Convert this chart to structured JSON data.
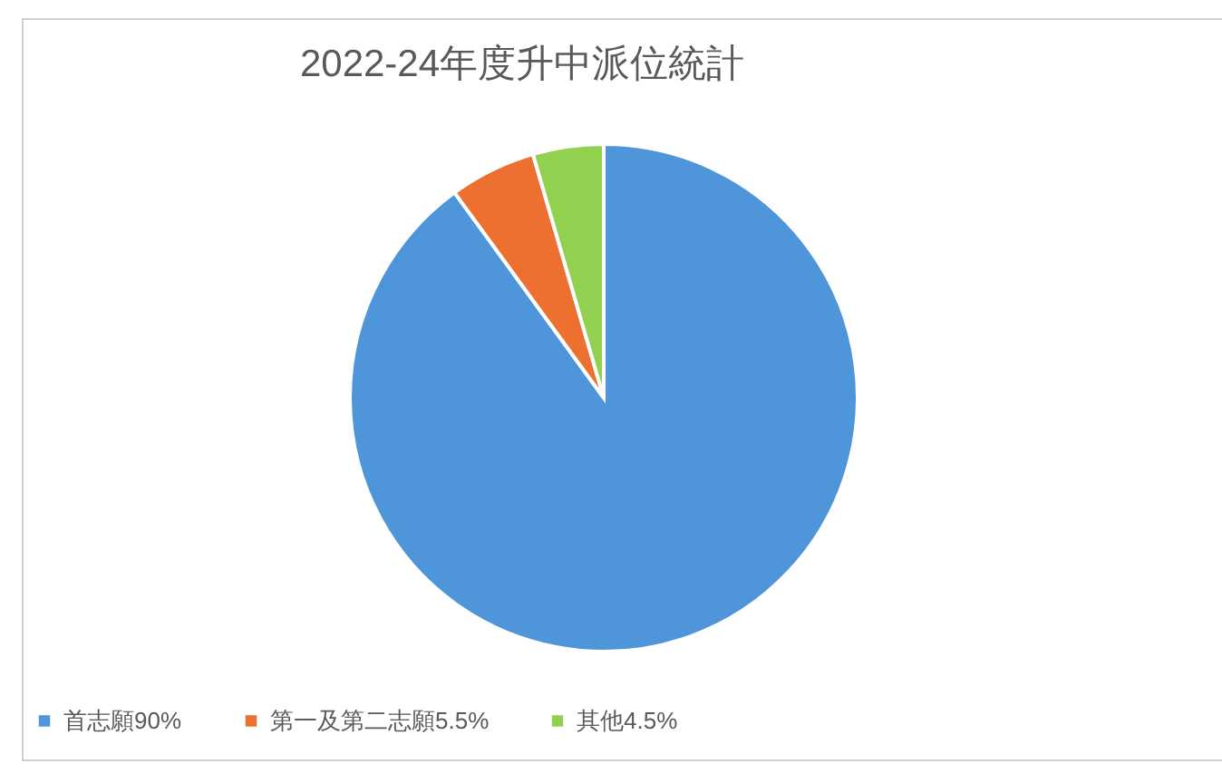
{
  "chart_data": {
    "type": "pie",
    "title": "2022-24年度升中派位統計",
    "categories": [
      "首志願90%",
      "第一及第二志願5.5%",
      "其他4.5%"
    ],
    "values": [
      90,
      5.5,
      4.5
    ],
    "colors": [
      "#4e95d9",
      "#ed7031",
      "#92d050"
    ],
    "legend": "bottom"
  }
}
